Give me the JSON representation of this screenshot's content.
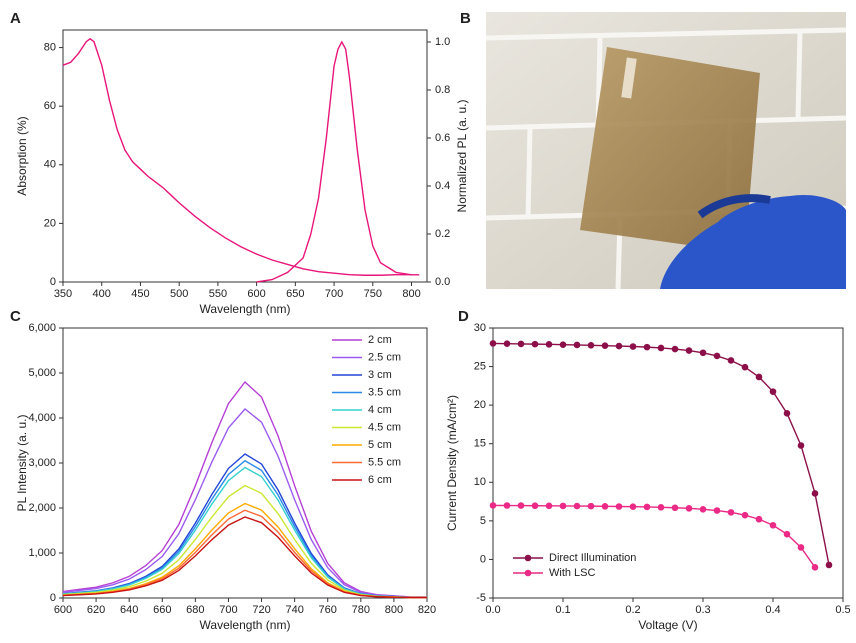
{
  "panel_b": {
    "label": "B"
  },
  "chart_data": [
    {
      "type": "line",
      "panel_label": "A",
      "xlabel": "Wavelength (nm)",
      "ylabel": "Absorption (%)",
      "y2label": "Normalized PL (a. u.)",
      "xlim": [
        350,
        820
      ],
      "xticks": [
        350,
        400,
        450,
        500,
        550,
        600,
        650,
        700,
        750,
        800
      ],
      "ylim": [
        0,
        86
      ],
      "yticks": [
        0,
        20,
        40,
        60,
        80
      ],
      "y2lim": [
        0,
        1.05
      ],
      "y2ticks": [
        {
          "value": 0,
          "label": "0.0"
        },
        0.2,
        0.4,
        0.6,
        0.8,
        {
          "value": 1,
          "label": "1.0"
        }
      ],
      "series": [
        {
          "color": "#e8157a",
          "x": [
            350,
            360,
            370,
            380,
            385,
            390,
            400,
            410,
            420,
            430,
            440,
            450,
            460,
            470,
            480,
            490,
            500,
            520,
            540,
            560,
            580,
            600,
            620,
            640,
            660,
            680,
            700,
            720,
            740,
            760,
            780,
            800
          ],
          "values": [
            74,
            75,
            78,
            82,
            83,
            82,
            74,
            62,
            52,
            45,
            41,
            38.5,
            36,
            34,
            32,
            29.5,
            27,
            22.5,
            18.5,
            15,
            12,
            9.5,
            7.5,
            6,
            4.5,
            3.5,
            3,
            2.5,
            2.3,
            2.3,
            2.5,
            2.5
          ]
        },
        {
          "color": "#e8157a",
          "axis": "y2",
          "x": [
            600,
            620,
            640,
            660,
            670,
            680,
            690,
            700,
            705,
            710,
            715,
            720,
            730,
            740,
            750,
            760,
            780,
            800,
            810
          ],
          "values": [
            0,
            0.01,
            0.04,
            0.1,
            0.2,
            0.35,
            0.6,
            0.9,
            0.97,
            1.0,
            0.97,
            0.85,
            0.55,
            0.3,
            0.15,
            0.08,
            0.04,
            0.03,
            0.03
          ]
        }
      ]
    },
    {
      "type": "line",
      "panel_label": "C",
      "xlabel": "Wavelength (nm)",
      "ylabel": "PL Intensity (a. u.)",
      "legend": "upper right",
      "xlim": [
        600,
        820
      ],
      "xticks": [
        600,
        620,
        640,
        660,
        680,
        700,
        720,
        740,
        760,
        780,
        800,
        820
      ],
      "ylim": [
        0,
        6000
      ],
      "yticks": [
        0,
        {
          "value": 1000,
          "label": "1,000"
        },
        {
          "value": 2000,
          "label": "2,000"
        },
        {
          "value": 3000,
          "label": "3,000"
        },
        {
          "value": 4000,
          "label": "4,000"
        },
        {
          "value": 5000,
          "label": "5,000"
        },
        {
          "value": 6000,
          "label": "6,000"
        }
      ],
      "x": [
        600,
        610,
        620,
        630,
        640,
        650,
        660,
        670,
        680,
        690,
        700,
        710,
        720,
        730,
        740,
        750,
        760,
        770,
        780,
        790,
        800,
        810,
        820
      ],
      "series": [
        {
          "name": "2 cm",
          "color": "#b63fd6",
          "values": [
            144,
            192,
            240,
            336,
            480,
            720,
            1056,
            1632,
            2496,
            3456,
            4320,
            4800,
            4464,
            3600,
            2496,
            1488,
            768,
            336,
            144,
            72,
            48,
            24,
            24
          ]
        },
        {
          "name": "2.5 cm",
          "color": "#9b5cf0",
          "values": [
            126,
            168,
            210,
            294,
            420,
            630,
            924,
            1428,
            2184,
            3024,
            3780,
            4200,
            3906,
            3150,
            2184,
            1302,
            672,
            294,
            126,
            63,
            42,
            21,
            21
          ]
        },
        {
          "name": "3 cm",
          "color": "#2345d8",
          "values": [
            96,
            128,
            160,
            224,
            320,
            480,
            704,
            1088,
            1664,
            2304,
            2880,
            3200,
            2976,
            2400,
            1664,
            992,
            512,
            224,
            96,
            48,
            32,
            16,
            16
          ]
        },
        {
          "name": "3.5 cm",
          "color": "#2a8ae8",
          "values": [
            92,
            122,
            153,
            214,
            305,
            458,
            671,
            1037,
            1586,
            2196,
            2745,
            3050,
            2837,
            2288,
            1586,
            946,
            488,
            214,
            92,
            46,
            31,
            15,
            15
          ]
        },
        {
          "name": "4 cm",
          "color": "#35d0cf",
          "values": [
            87,
            116,
            145,
            203,
            290,
            435,
            638,
            986,
            1508,
            2088,
            2610,
            2900,
            2697,
            2175,
            1508,
            899,
            464,
            203,
            87,
            44,
            29,
            15,
            15
          ]
        },
        {
          "name": "4.5 cm",
          "color": "#c9e832",
          "values": [
            75,
            100,
            125,
            175,
            250,
            375,
            550,
            850,
            1300,
            1800,
            2250,
            2500,
            2325,
            1875,
            1300,
            775,
            400,
            175,
            75,
            38,
            25,
            13,
            13
          ]
        },
        {
          "name": "5 cm",
          "color": "#ffaa00",
          "values": [
            63,
            84,
            105,
            147,
            210,
            315,
            462,
            714,
            1092,
            1512,
            1890,
            2100,
            1953,
            1575,
            1092,
            651,
            336,
            147,
            63,
            32,
            21,
            11,
            11
          ]
        },
        {
          "name": "5.5 cm",
          "color": "#ff6a35",
          "values": [
            59,
            78,
            98,
            137,
            195,
            293,
            429,
            663,
            1014,
            1404,
            1755,
            1950,
            1814,
            1463,
            1014,
            605,
            312,
            137,
            59,
            29,
            20,
            10,
            10
          ]
        },
        {
          "name": "6 cm",
          "color": "#c81414",
          "values": [
            54,
            72,
            90,
            126,
            180,
            270,
            396,
            612,
            936,
            1296,
            1620,
            1800,
            1674,
            1350,
            936,
            558,
            288,
            126,
            54,
            27,
            18,
            9,
            9
          ]
        }
      ]
    },
    {
      "type": "line",
      "markers": true,
      "panel_label": "D",
      "xlabel": "Voltage (V)",
      "ylabel": "Current Density (mA/cm²)",
      "legend": "lower left",
      "xlim": [
        0,
        0.5
      ],
      "xticks": [
        {
          "value": 0,
          "label": "0.0"
        },
        0.1,
        0.2,
        0.3,
        0.4,
        0.5
      ],
      "ylim": [
        -5,
        30
      ],
      "yticks": [
        -5,
        0,
        5,
        10,
        15,
        20,
        25,
        30
      ],
      "x": [
        0,
        0.02,
        0.04,
        0.06,
        0.08,
        0.1,
        0.12,
        0.14,
        0.16,
        0.18,
        0.2,
        0.22,
        0.24,
        0.26,
        0.28,
        0.3,
        0.32,
        0.34,
        0.36,
        0.38,
        0.4,
        0.42,
        0.44,
        0.46,
        0.48
      ],
      "series": [
        {
          "name": "Direct Illumination",
          "color": "#8c0f4a",
          "values": [
            28.0,
            27.97,
            27.94,
            27.91,
            27.88,
            27.84,
            27.8,
            27.76,
            27.71,
            27.66,
            27.6,
            27.52,
            27.41,
            27.27,
            27.07,
            26.79,
            26.38,
            25.79,
            24.92,
            23.65,
            21.75,
            18.94,
            14.77,
            8.55,
            -0.72
          ]
        },
        {
          "name": "With LSC",
          "color": "#ea2a86",
          "values": [
            7.0,
            6.99,
            6.98,
            6.96,
            6.95,
            6.93,
            6.92,
            6.91,
            6.88,
            6.86,
            6.84,
            6.81,
            6.76,
            6.7,
            6.62,
            6.5,
            6.34,
            6.1,
            5.73,
            5.21,
            4.43,
            3.27,
            1.55,
            -1.02,
            null
          ]
        }
      ]
    }
  ]
}
